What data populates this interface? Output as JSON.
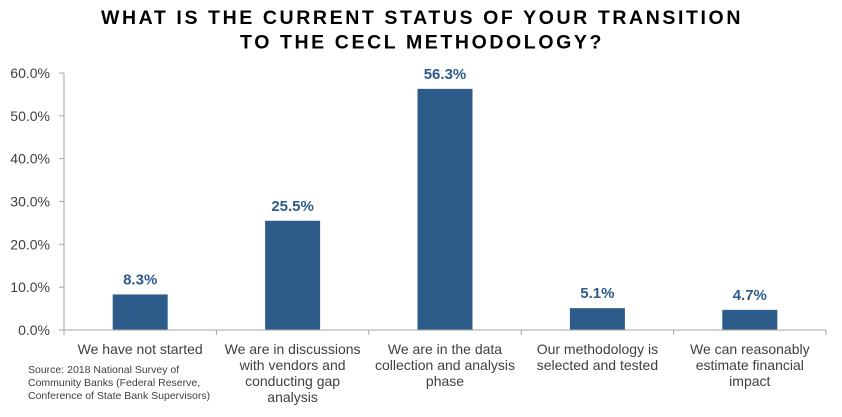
{
  "chart_data": {
    "type": "bar",
    "title": [
      "WHAT IS THE CURRENT STATUS OF YOUR TRANSITION",
      "TO THE CECL METHODOLOGY?"
    ],
    "categories": [
      [
        "We have not started"
      ],
      [
        "We are in discussions",
        "with vendors and",
        "conducting gap",
        "analysis"
      ],
      [
        "We are in the data",
        "collection and analysis",
        "phase"
      ],
      [
        "Our methodology is",
        "selected and tested"
      ],
      [
        "We can reasonably",
        "estimate financial",
        "impact"
      ]
    ],
    "values": [
      8.3,
      25.5,
      56.3,
      5.1,
      4.7
    ],
    "data_labels": [
      "8.3%",
      "25.5%",
      "56.3%",
      "5.1%",
      "4.7%"
    ],
    "xlabel": "",
    "ylabel": "",
    "ylim": [
      0,
      60
    ],
    "yticks": [
      0,
      10,
      20,
      30,
      40,
      50,
      60
    ],
    "ytick_labels": [
      "0.0%",
      "10.0%",
      "20.0%",
      "30.0%",
      "40.0%",
      "50.0%",
      "60.0%"
    ],
    "grid": false,
    "legend": "none",
    "bar_color": "#2e5c8a",
    "label_color": "#2e5c8a",
    "axis_color": "#a6a6a6",
    "source_note": [
      "Source: 2018 National Survey of",
      "Community Banks (Federal Reserve,",
      "Conference of State Bank Supervisors)"
    ]
  }
}
